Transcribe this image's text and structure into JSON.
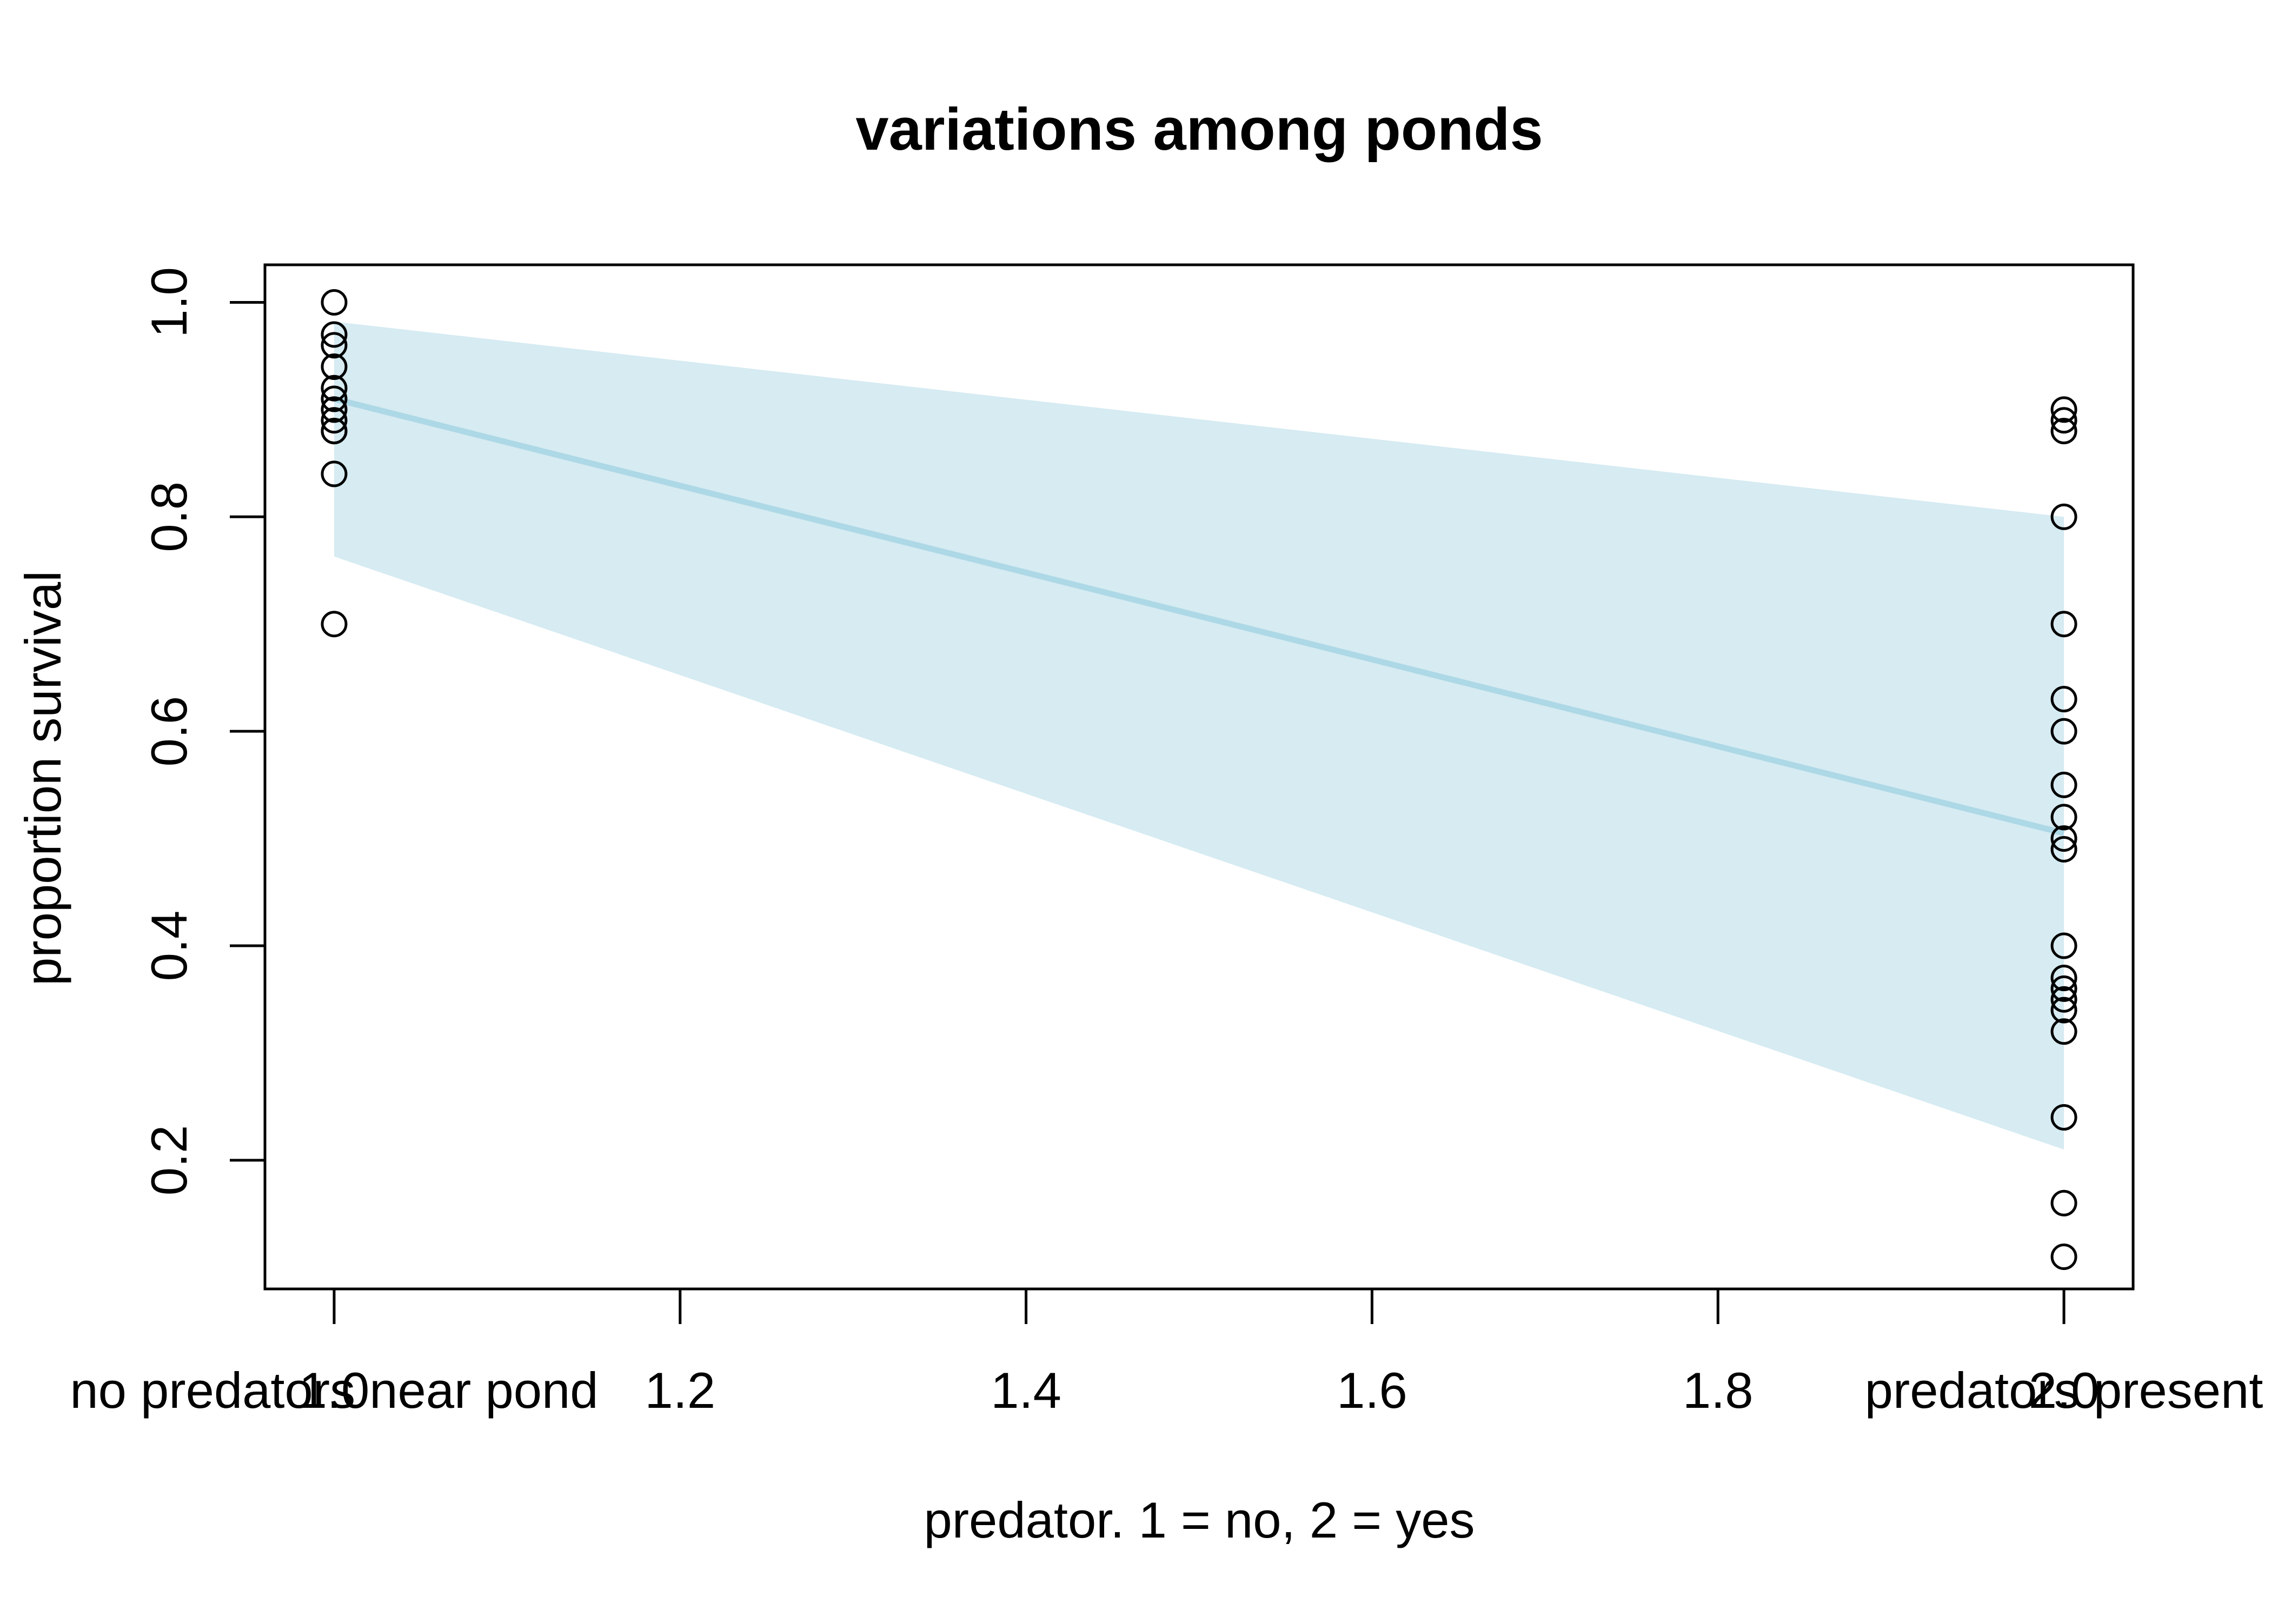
{
  "chart_data": {
    "type": "scatter",
    "title": "variations among ponds",
    "xlabel": "predator. 1 = no, 2 = yes",
    "ylabel": "proportion survival",
    "xlim": [
      0.96,
      2.04
    ],
    "ylim": [
      0.08,
      1.035
    ],
    "x_ticks": [
      1.0,
      1.2,
      1.4,
      1.6,
      1.8,
      2.0
    ],
    "x_tick_labels": [
      "1.0",
      "1.2",
      "1.4",
      "1.6",
      "1.8",
      "2.0"
    ],
    "y_ticks": [
      0.2,
      0.4,
      0.6,
      0.8,
      1.0
    ],
    "y_tick_labels": [
      "0.2",
      "0.4",
      "0.6",
      "0.8",
      "1.0"
    ],
    "group_labels": [
      {
        "x": 1,
        "text": "no predators near pond"
      },
      {
        "x": 2,
        "text": "predators present"
      }
    ],
    "grid": false,
    "points": {
      "x": [
        1,
        1,
        1,
        1,
        1,
        1,
        1,
        1,
        1,
        1,
        1,
        1,
        2,
        2,
        2,
        2,
        2,
        2,
        2,
        2,
        2,
        2,
        2,
        2,
        2,
        2,
        2,
        2,
        2,
        2,
        2,
        2
      ],
      "y": [
        1.0,
        0.97,
        0.96,
        0.94,
        0.92,
        0.91,
        0.9,
        0.89,
        0.88,
        0.88,
        0.84,
        0.7,
        0.9,
        0.89,
        0.8,
        0.7,
        0.63,
        0.6,
        0.52,
        0.5,
        0.49,
        0.4,
        0.37,
        0.36,
        0.35,
        0.34,
        0.32,
        0.24,
        0.16,
        0.11,
        0.88,
        0.55
      ]
    },
    "fit_line": {
      "x": [
        1,
        2
      ],
      "y": [
        0.91,
        0.505
      ]
    },
    "ci_band": {
      "x": [
        1,
        2
      ],
      "upper": [
        0.982,
        0.8
      ],
      "lower": [
        0.763,
        0.21
      ]
    },
    "colors": {
      "points": "#000000",
      "line": "#add8e6",
      "band": "#add8e6"
    }
  }
}
